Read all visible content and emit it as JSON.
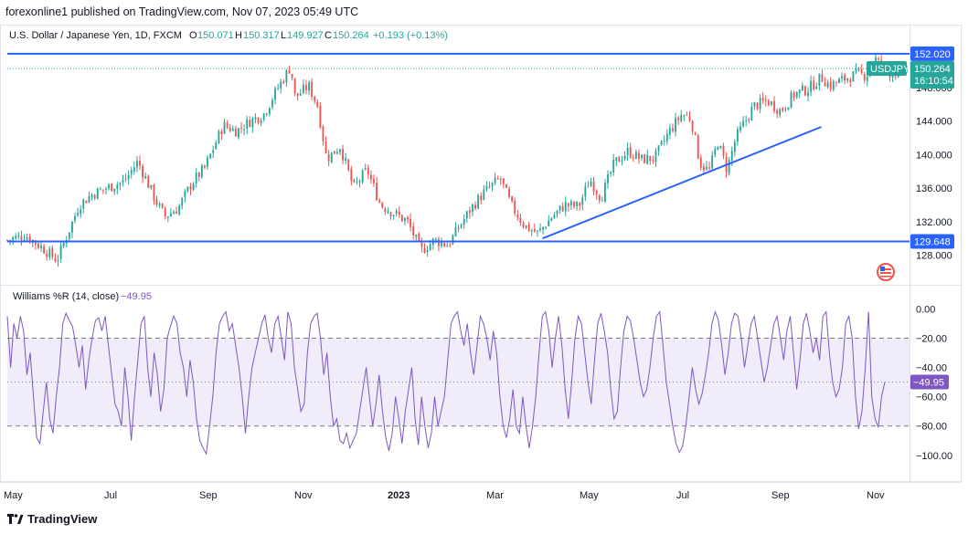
{
  "header": {
    "publisher": "forexonline1 published on TradingView.com, Nov 07, 2023 05:49 UTC"
  },
  "legend": {
    "title": "U.S. Dollar / Japanese Yen, 1D, FXCM",
    "open_label": "O",
    "open": "150.071",
    "high_label": "H",
    "high": "150.317",
    "low_label": "L",
    "low": "149.927",
    "close_label": "C",
    "close": "150.264",
    "change": "+0.193 (+0.13%)"
  },
  "indicator": {
    "title": "Williams %R (14, close)",
    "value": "−49.95"
  },
  "footer": {
    "brand": "TradingView"
  },
  "colors": {
    "up": "#26a69a",
    "down": "#ef5350",
    "line": "#2962ff",
    "wr": "#7e57c2",
    "band": "#f1ecfa",
    "text": "#131722",
    "grid": "#e0e3eb"
  },
  "icons": {
    "logo": "tradingview-logo-icon",
    "flag": "us-japan-flag-icon"
  },
  "chart_data": [
    {
      "type": "candlestick",
      "title": "U.S. Dollar / Japanese Yen, 1D, FXCM",
      "symbol": "USDJPY",
      "x_tick_labels": [
        "May",
        "Jul",
        "Sep",
        "Nov",
        "2023",
        "Mar",
        "May",
        "Jul",
        "Sep",
        "Nov"
      ],
      "y_tick_labels": [
        "128.000",
        "132.000",
        "136.000",
        "140.000",
        "144.000",
        "148.000"
      ],
      "ylim": [
        126.0,
        153.2
      ],
      "price_levels": [
        {
          "label": "152.020",
          "value": 152.02,
          "kind": "horizontal line"
        },
        {
          "label": "129.648",
          "value": 129.648,
          "kind": "horizontal line"
        }
      ],
      "last_price": {
        "symbol": "USDJPY",
        "value": "150.264",
        "countdown": "16:10:54"
      },
      "trendline": [
        {
          "x": 0.595,
          "y": 130.0
        },
        {
          "x": 0.905,
          "y": 143.3
        }
      ],
      "close_path": [
        {
          "x": 0.0,
          "y": 129.8
        },
        {
          "x": 0.02,
          "y": 130.4
        },
        {
          "x": 0.04,
          "y": 128.8
        },
        {
          "x": 0.055,
          "y": 127.4
        },
        {
          "x": 0.065,
          "y": 130.0
        },
        {
          "x": 0.08,
          "y": 134.0
        },
        {
          "x": 0.095,
          "y": 135.3
        },
        {
          "x": 0.11,
          "y": 136.0
        },
        {
          "x": 0.13,
          "y": 136.8
        },
        {
          "x": 0.145,
          "y": 139.2
        },
        {
          "x": 0.165,
          "y": 134.5
        },
        {
          "x": 0.175,
          "y": 132.6
        },
        {
          "x": 0.19,
          "y": 133.6
        },
        {
          "x": 0.205,
          "y": 136.6
        },
        {
          "x": 0.22,
          "y": 138.5
        },
        {
          "x": 0.24,
          "y": 143.5
        },
        {
          "x": 0.255,
          "y": 142.8
        },
        {
          "x": 0.27,
          "y": 144.0
        },
        {
          "x": 0.285,
          "y": 144.8
        },
        {
          "x": 0.3,
          "y": 147.8
        },
        {
          "x": 0.315,
          "y": 150.5
        },
        {
          "x": 0.32,
          "y": 146.8
        },
        {
          "x": 0.335,
          "y": 148.2
        },
        {
          "x": 0.345,
          "y": 145.8
        },
        {
          "x": 0.355,
          "y": 139.5
        },
        {
          "x": 0.37,
          "y": 141.0
        },
        {
          "x": 0.385,
          "y": 136.0
        },
        {
          "x": 0.4,
          "y": 138.2
        },
        {
          "x": 0.415,
          "y": 134.0
        },
        {
          "x": 0.43,
          "y": 133.0
        },
        {
          "x": 0.445,
          "y": 132.0
        },
        {
          "x": 0.46,
          "y": 128.5
        },
        {
          "x": 0.475,
          "y": 129.8
        },
        {
          "x": 0.49,
          "y": 129.2
        },
        {
          "x": 0.5,
          "y": 131.0
        },
        {
          "x": 0.515,
          "y": 133.5
        },
        {
          "x": 0.53,
          "y": 135.5
        },
        {
          "x": 0.548,
          "y": 137.2
        },
        {
          "x": 0.56,
          "y": 134.0
        },
        {
          "x": 0.575,
          "y": 131.5
        },
        {
          "x": 0.59,
          "y": 130.6
        },
        {
          "x": 0.605,
          "y": 132.5
        },
        {
          "x": 0.62,
          "y": 134.0
        },
        {
          "x": 0.635,
          "y": 133.8
        },
        {
          "x": 0.648,
          "y": 137.0
        },
        {
          "x": 0.66,
          "y": 134.8
        },
        {
          "x": 0.675,
          "y": 139.0
        },
        {
          "x": 0.69,
          "y": 140.4
        },
        {
          "x": 0.705,
          "y": 139.4
        },
        {
          "x": 0.72,
          "y": 139.6
        },
        {
          "x": 0.735,
          "y": 142.6
        },
        {
          "x": 0.75,
          "y": 144.8
        },
        {
          "x": 0.76,
          "y": 144.3
        },
        {
          "x": 0.77,
          "y": 139.0
        },
        {
          "x": 0.78,
          "y": 138.0
        },
        {
          "x": 0.79,
          "y": 141.5
        },
        {
          "x": 0.8,
          "y": 138.2
        },
        {
          "x": 0.81,
          "y": 142.0
        },
        {
          "x": 0.83,
          "y": 145.8
        },
        {
          "x": 0.845,
          "y": 146.4
        },
        {
          "x": 0.86,
          "y": 145.2
        },
        {
          "x": 0.875,
          "y": 147.2
        },
        {
          "x": 0.89,
          "y": 147.8
        },
        {
          "x": 0.905,
          "y": 149.2
        },
        {
          "x": 0.915,
          "y": 148.2
        },
        {
          "x": 0.93,
          "y": 149.0
        },
        {
          "x": 0.945,
          "y": 149.6
        },
        {
          "x": 0.955,
          "y": 149.4
        },
        {
          "x": 0.965,
          "y": 151.4
        },
        {
          "x": 0.975,
          "y": 150.0
        },
        {
          "x": 0.985,
          "y": 149.6
        },
        {
          "x": 1.0,
          "y": 150.26
        }
      ]
    },
    {
      "type": "line",
      "title": "Williams %R (14, close)",
      "y_tick_labels": [
        "0.00",
        "−20.00",
        "−40.00",
        "−60.00",
        "−80.00",
        "−100.00"
      ],
      "ylim": [
        -107,
        4
      ],
      "levels": [
        -20,
        -80
      ],
      "current": {
        "label": "−49.95",
        "value": -49.95
      },
      "series": [
        {
          "name": "Williams %R (14, close)",
          "values": [
            -5,
            -40,
            -10,
            -20,
            -5,
            -15,
            -45,
            -30,
            -60,
            -88,
            -92,
            -70,
            -50,
            -75,
            -85,
            -60,
            -40,
            -10,
            -3,
            -8,
            -12,
            -25,
            -40,
            -25,
            -55,
            -35,
            -20,
            -8,
            -6,
            -15,
            -5,
            -25,
            -45,
            -65,
            -70,
            -80,
            -40,
            -60,
            -90,
            -60,
            -35,
            -10,
            -5,
            -40,
            -60,
            -30,
            -45,
            -70,
            -55,
            -20,
            -12,
            -5,
            -10,
            -30,
            -40,
            -60,
            -35,
            -50,
            -75,
            -90,
            -95,
            -99,
            -80,
            -60,
            -30,
            -10,
            -5,
            -2,
            -15,
            -10,
            -25,
            -40,
            -60,
            -85,
            -60,
            -40,
            -30,
            -20,
            -10,
            -4,
            -20,
            -30,
            -10,
            -5,
            -20,
            -35,
            -2,
            -10,
            -40,
            -55,
            -70,
            -65,
            -30,
            -10,
            -5,
            -3,
            -20,
            -45,
            -30,
            -60,
            -80,
            -75,
            -90,
            -92,
            -85,
            -95,
            -90,
            -85,
            -70,
            -55,
            -40,
            -60,
            -80,
            -65,
            -45,
            -70,
            -88,
            -97,
            -85,
            -60,
            -75,
            -92,
            -70,
            -55,
            -40,
            -75,
            -93,
            -60,
            -80,
            -95,
            -85,
            -60,
            -80,
            -70,
            -60,
            -35,
            -10,
            -5,
            -2,
            -15,
            -25,
            -10,
            -30,
            -45,
            -25,
            -5,
            -10,
            -20,
            -35,
            -15,
            -30,
            -60,
            -80,
            -88,
            -75,
            -55,
            -80,
            -85,
            -60,
            -80,
            -95,
            -80,
            -60,
            -30,
            -5,
            -2,
            -15,
            -40,
            -20,
            -5,
            -25,
            -55,
            -75,
            -50,
            -20,
            -5,
            -10,
            -30,
            -50,
            -65,
            -35,
            -10,
            -3,
            -15,
            -30,
            -55,
            -75,
            -70,
            -40,
            -15,
            -5,
            -8,
            -20,
            -35,
            -50,
            -60,
            -55,
            -40,
            -20,
            -5,
            -2,
            -25,
            -50,
            -65,
            -80,
            -92,
            -98,
            -94,
            -80,
            -60,
            -40,
            -55,
            -65,
            -58,
            -45,
            -30,
            -10,
            -2,
            -8,
            -25,
            -45,
            -30,
            -10,
            -3,
            -5,
            -20,
            -40,
            -25,
            -10,
            -5,
            -20,
            -35,
            -50,
            -40,
            -25,
            -10,
            -5,
            -20,
            -35,
            -15,
            -5,
            -30,
            -55,
            -35,
            -10,
            -3,
            -15,
            -30,
            -20,
            -35,
            -5,
            -2,
            -30,
            -50,
            -60,
            -55,
            -40,
            -10,
            -5,
            -20,
            -60,
            -82,
            -70,
            -40,
            -2,
            -60,
            -75,
            -81,
            -60,
            -49.95
          ]
        }
      ]
    }
  ]
}
